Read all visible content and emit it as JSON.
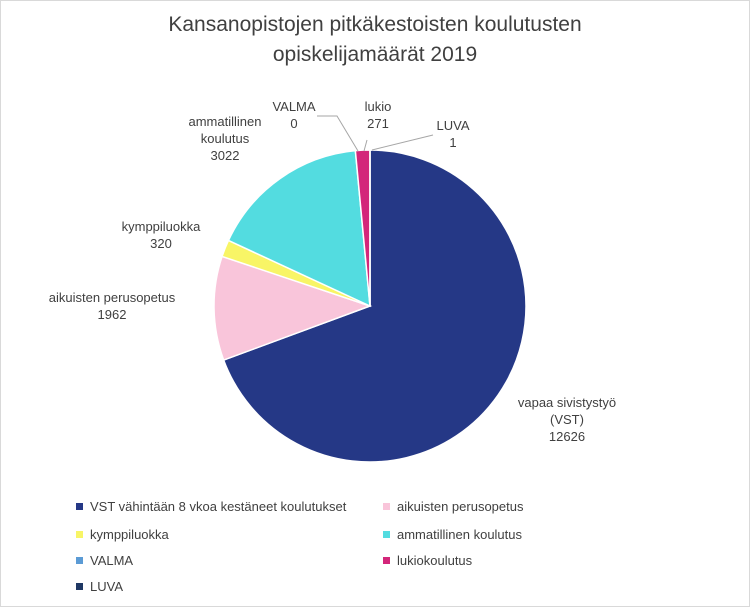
{
  "chart_data": {
    "type": "pie",
    "title_lines": [
      "Kansanopistojen pitkäkestoisten koulutusten",
      "opiskelijamäärät 2019"
    ],
    "slices": [
      {
        "key": "vst",
        "label_lines": [
          "vapaa sivistystyö",
          "(VST)"
        ],
        "value": 12626,
        "value_text": "12626",
        "color": "#253886"
      },
      {
        "key": "aikuisten",
        "label_lines": [
          "aikuisten perusopetus"
        ],
        "value": 1962,
        "value_text": "1962",
        "color": "#f9c5da"
      },
      {
        "key": "kymppi",
        "label_lines": [
          "kymppiluokka"
        ],
        "value": 320,
        "value_text": "320",
        "color": "#f8f566"
      },
      {
        "key": "ammatillinen",
        "label_lines": [
          "ammatillinen",
          "koulutus"
        ],
        "value": 3022,
        "value_text": "3022",
        "color": "#53dce0"
      },
      {
        "key": "valma",
        "label_lines": [
          "VALMA"
        ],
        "value": 0,
        "value_text": "0",
        "color": "#5b9bd5"
      },
      {
        "key": "lukio",
        "label_lines": [
          "lukio"
        ],
        "value": 271,
        "value_text": "271",
        "color": "#d3267a"
      },
      {
        "key": "luva",
        "label_lines": [
          "LUVA"
        ],
        "value": 1,
        "value_text": "1",
        "color": "#1f3864"
      }
    ],
    "legend": [
      {
        "label": "VST vähintään 8 vkoa kestäneet koulutukset",
        "color": "#253886"
      },
      {
        "label": "aikuisten perusopetus",
        "color": "#f9c5da"
      },
      {
        "label": "kymppiluokka",
        "color": "#f8f566"
      },
      {
        "label": "ammatillinen koulutus",
        "color": "#53dce0"
      },
      {
        "label": "VALMA",
        "color": "#5b9bd5"
      },
      {
        "label": "lukiokoulutus",
        "color": "#d3267a"
      },
      {
        "label": "LUVA",
        "color": "#1f3864"
      }
    ],
    "legend_position": "bottom"
  }
}
